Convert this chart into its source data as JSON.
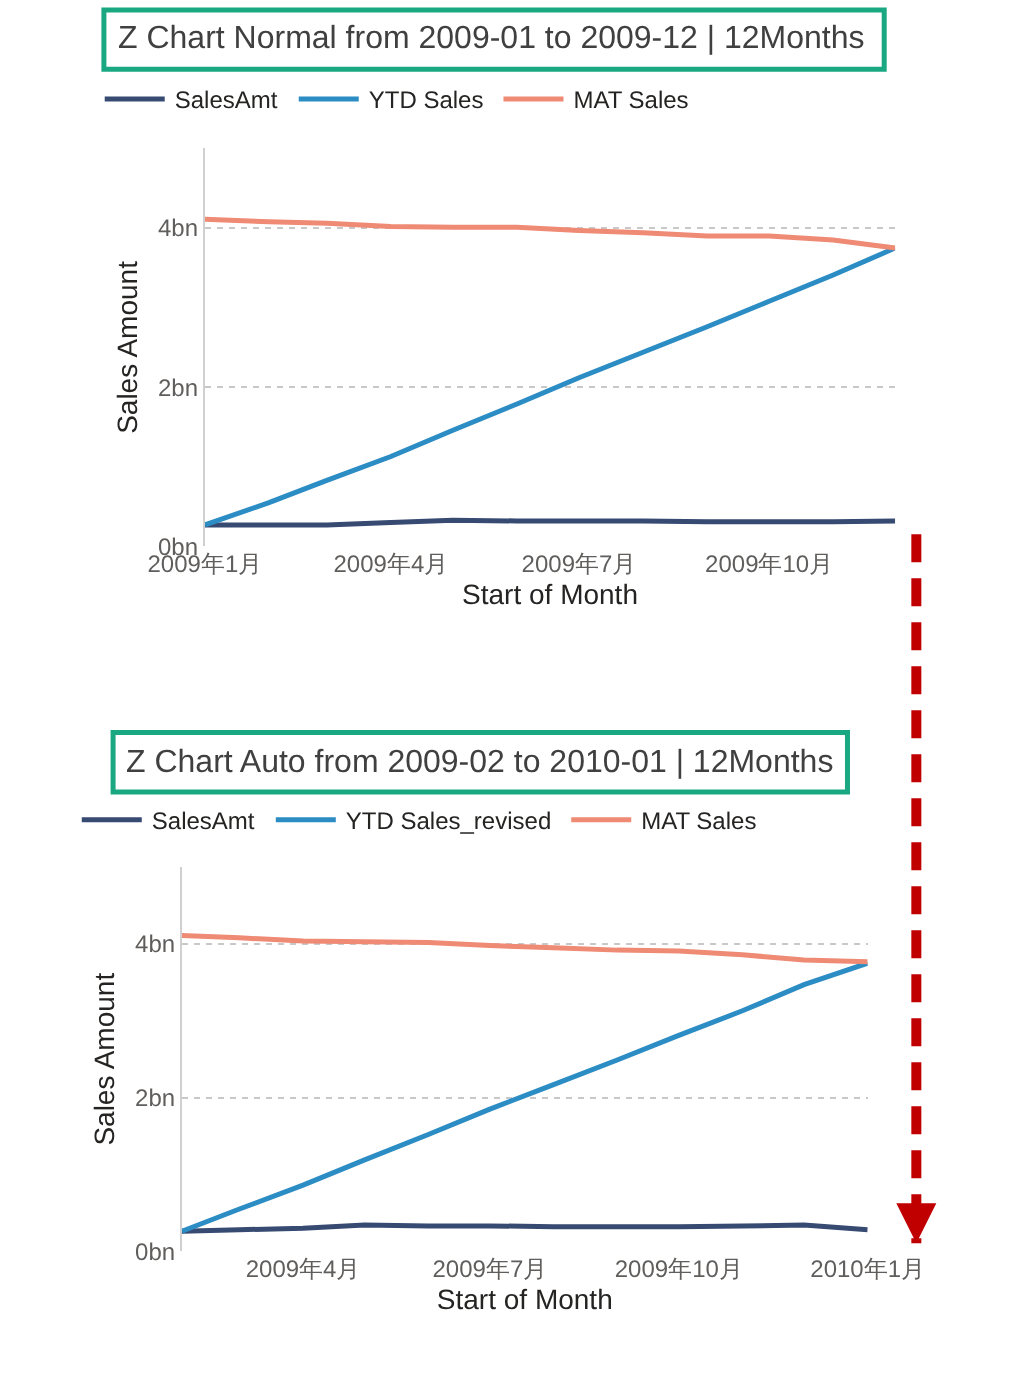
{
  "chart_data": [
    {
      "type": "line",
      "title": "Z Chart Normal from 2009-01 to 2009-12 | 12Months",
      "xlabel": "Start of Month",
      "ylabel": "Sales Amount",
      "x": [
        "2009-01",
        "2009-02",
        "2009-03",
        "2009-04",
        "2009-05",
        "2009-06",
        "2009-07",
        "2009-08",
        "2009-09",
        "2009-10",
        "2009-11",
        "2009-12"
      ],
      "xlim": [
        "2009-01",
        "2009-12"
      ],
      "xticks": [
        {
          "value": "2009-01",
          "label": "2009年1月"
        },
        {
          "value": "2009-04",
          "label": "2009年4月"
        },
        {
          "value": "2009-07",
          "label": "2009年7月"
        },
        {
          "value": "2009-10",
          "label": "2009年10月"
        }
      ],
      "ylim": [
        0,
        5
      ],
      "yticks": [
        {
          "value": 0,
          "label": "0bn"
        },
        {
          "value": 2,
          "label": "2bn"
        },
        {
          "value": 4,
          "label": "4bn"
        }
      ],
      "grid": "y",
      "legend": "top left",
      "marker": "none",
      "line_style": "solid",
      "series": [
        {
          "name": "SalesAmt",
          "color": "#374a72",
          "values": [
            0.27,
            0.27,
            0.27,
            0.3,
            0.33,
            0.32,
            0.32,
            0.32,
            0.31,
            0.31,
            0.31,
            0.32
          ]
        },
        {
          "name": "YTD Sales",
          "color": "#2c8cc4",
          "values": [
            0.27,
            0.55,
            0.83,
            1.13,
            1.46,
            1.79,
            2.12,
            2.44,
            2.76,
            3.08,
            3.41,
            3.75
          ]
        },
        {
          "name": "MAT Sales",
          "color": "#ef8a74",
          "values": [
            4.11,
            4.08,
            4.06,
            4.02,
            4.01,
            4.01,
            3.97,
            3.94,
            3.9,
            3.9,
            3.85,
            3.75
          ]
        }
      ]
    },
    {
      "type": "line",
      "title": "Z Chart Auto from 2009-02 to 2010-01 | 12Months",
      "xlabel": "Start of Month",
      "ylabel": "Sales Amount",
      "x": [
        "2009-02",
        "2009-03",
        "2009-04",
        "2009-05",
        "2009-06",
        "2009-07",
        "2009-08",
        "2009-09",
        "2009-10",
        "2009-11",
        "2009-12",
        "2010-01"
      ],
      "xlim": [
        "2009-02",
        "2010-01"
      ],
      "xticks": [
        {
          "value": "2009-04",
          "label": "2009年4月"
        },
        {
          "value": "2009-07",
          "label": "2009年7月"
        },
        {
          "value": "2009-10",
          "label": "2009年10月"
        },
        {
          "value": "2010-01",
          "label": "2010年1月"
        }
      ],
      "ylim": [
        0,
        5
      ],
      "yticks": [
        {
          "value": 0,
          "label": "0bn"
        },
        {
          "value": 2,
          "label": "2bn"
        },
        {
          "value": 4,
          "label": "4bn"
        }
      ],
      "grid": "y",
      "legend": "top left",
      "marker": "none",
      "line_style": "solid",
      "series": [
        {
          "name": "SalesAmt",
          "color": "#374a72",
          "values": [
            0.26,
            0.28,
            0.3,
            0.34,
            0.33,
            0.33,
            0.32,
            0.32,
            0.32,
            0.33,
            0.34,
            0.28
          ]
        },
        {
          "name": "YTD Sales_revised",
          "color": "#2c8cc4",
          "values": [
            0.26,
            0.55,
            0.86,
            1.19,
            1.52,
            1.85,
            2.17,
            2.49,
            2.81,
            3.13,
            3.47,
            3.75
          ]
        },
        {
          "name": "MAT Sales",
          "color": "#ef8a74",
          "values": [
            4.11,
            4.08,
            4.04,
            4.03,
            4.02,
            3.98,
            3.95,
            3.92,
            3.91,
            3.86,
            3.79,
            3.77
          ]
        }
      ]
    }
  ]
}
